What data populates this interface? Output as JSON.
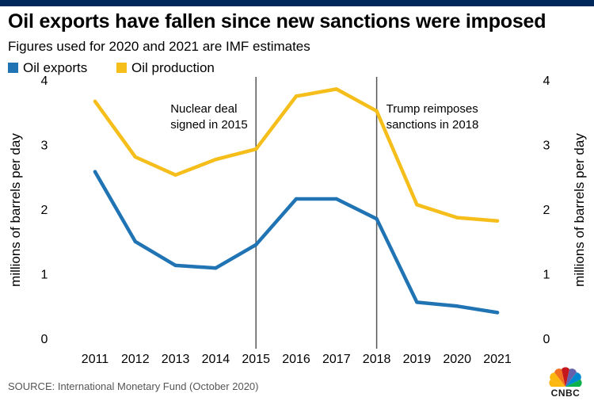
{
  "header": {
    "title": "Oil exports have fallen since new sanctions were imposed",
    "subtitle": "Figures used for 2020 and 2021 are IMF estimates"
  },
  "legend": [
    {
      "label": "Oil exports",
      "color": "#2074b4"
    },
    {
      "label": "Oil production",
      "color": "#f5be1a"
    }
  ],
  "source": "SOURCE: International Monetary Fund (October 2020)",
  "logo": {
    "text": "CNBC",
    "icon": "nbc-peacock-icon"
  },
  "chart_data": {
    "type": "line",
    "title": "Oil exports have fallen since new sanctions were imposed",
    "subtitle": "Figures used for 2020 and 2021 are IMF estimates",
    "xlabel": "",
    "ylabel": "millions of barrels per day",
    "ylabel_right": "millions of barrels per day",
    "ylim": [
      0,
      4
    ],
    "yticks": [
      "0",
      "1",
      "2",
      "3",
      "4"
    ],
    "categories": [
      "2011",
      "2012",
      "2013",
      "2014",
      "2015",
      "2016",
      "2017",
      "2018",
      "2019",
      "2020",
      "2021"
    ],
    "series": [
      {
        "name": "Oil exports",
        "color": "#2074b4",
        "values": [
          2.58,
          1.5,
          1.13,
          1.09,
          1.45,
          2.16,
          2.16,
          1.85,
          0.56,
          0.5,
          0.4
        ]
      },
      {
        "name": "Oil production",
        "color": "#f5be1a",
        "values": [
          3.67,
          2.81,
          2.53,
          2.77,
          2.93,
          3.75,
          3.86,
          3.52,
          2.07,
          1.87,
          1.82
        ]
      }
    ],
    "vlines": [
      {
        "x": "2015",
        "label_lines": [
          "Nuclear deal",
          "signed in 2015"
        ],
        "side": "left"
      },
      {
        "x": "2018",
        "label_lines": [
          "Trump reimposes",
          "sanctions in 2018"
        ],
        "side": "right"
      }
    ],
    "legend_position": "top-left",
    "grid": false
  }
}
